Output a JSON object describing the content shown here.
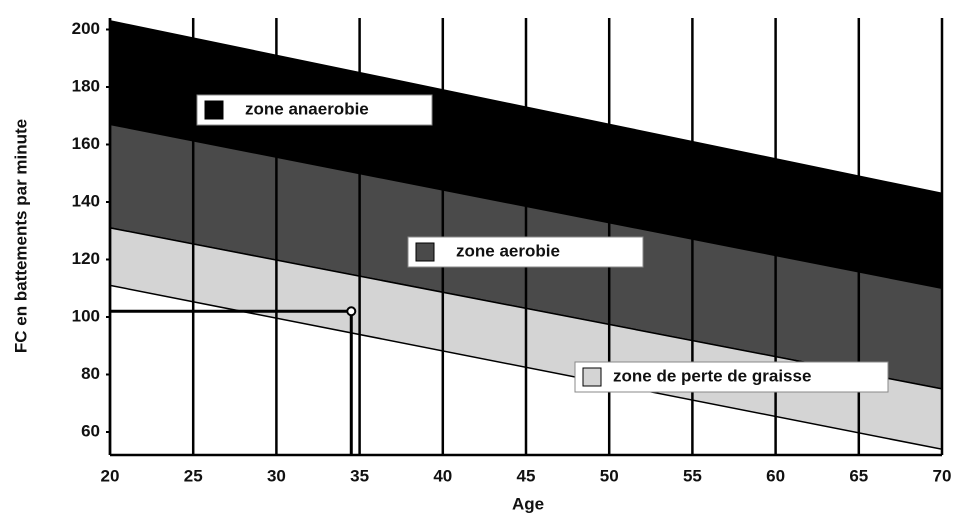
{
  "chart_data": {
    "type": "band",
    "xlabel": "Age",
    "ylabel": "FC en battements par minute",
    "x": [
      20,
      70
    ],
    "series": [
      {
        "name": "zone anaerobie",
        "color": "#000000",
        "values": [
          203,
          143
        ],
        "lower": [
          167,
          110
        ]
      },
      {
        "name": "zone aerobie",
        "color": "#4a4a4a",
        "values": [
          167,
          110
        ],
        "lower": [
          131,
          75
        ]
      },
      {
        "name": "zone de perte de graisse",
        "color": "#d4d4d4",
        "values": [
          131,
          75
        ],
        "lower": [
          111,
          54
        ]
      }
    ],
    "marker": {
      "x": 34.5,
      "y": 102
    },
    "xlim": [
      20,
      70
    ],
    "xticks": [
      20,
      25,
      30,
      35,
      40,
      45,
      50,
      55,
      60,
      65,
      70
    ],
    "ylim": [
      52,
      204
    ],
    "yticks": [
      60,
      80,
      100,
      120,
      140,
      160,
      180,
      200
    ],
    "grid": true
  }
}
